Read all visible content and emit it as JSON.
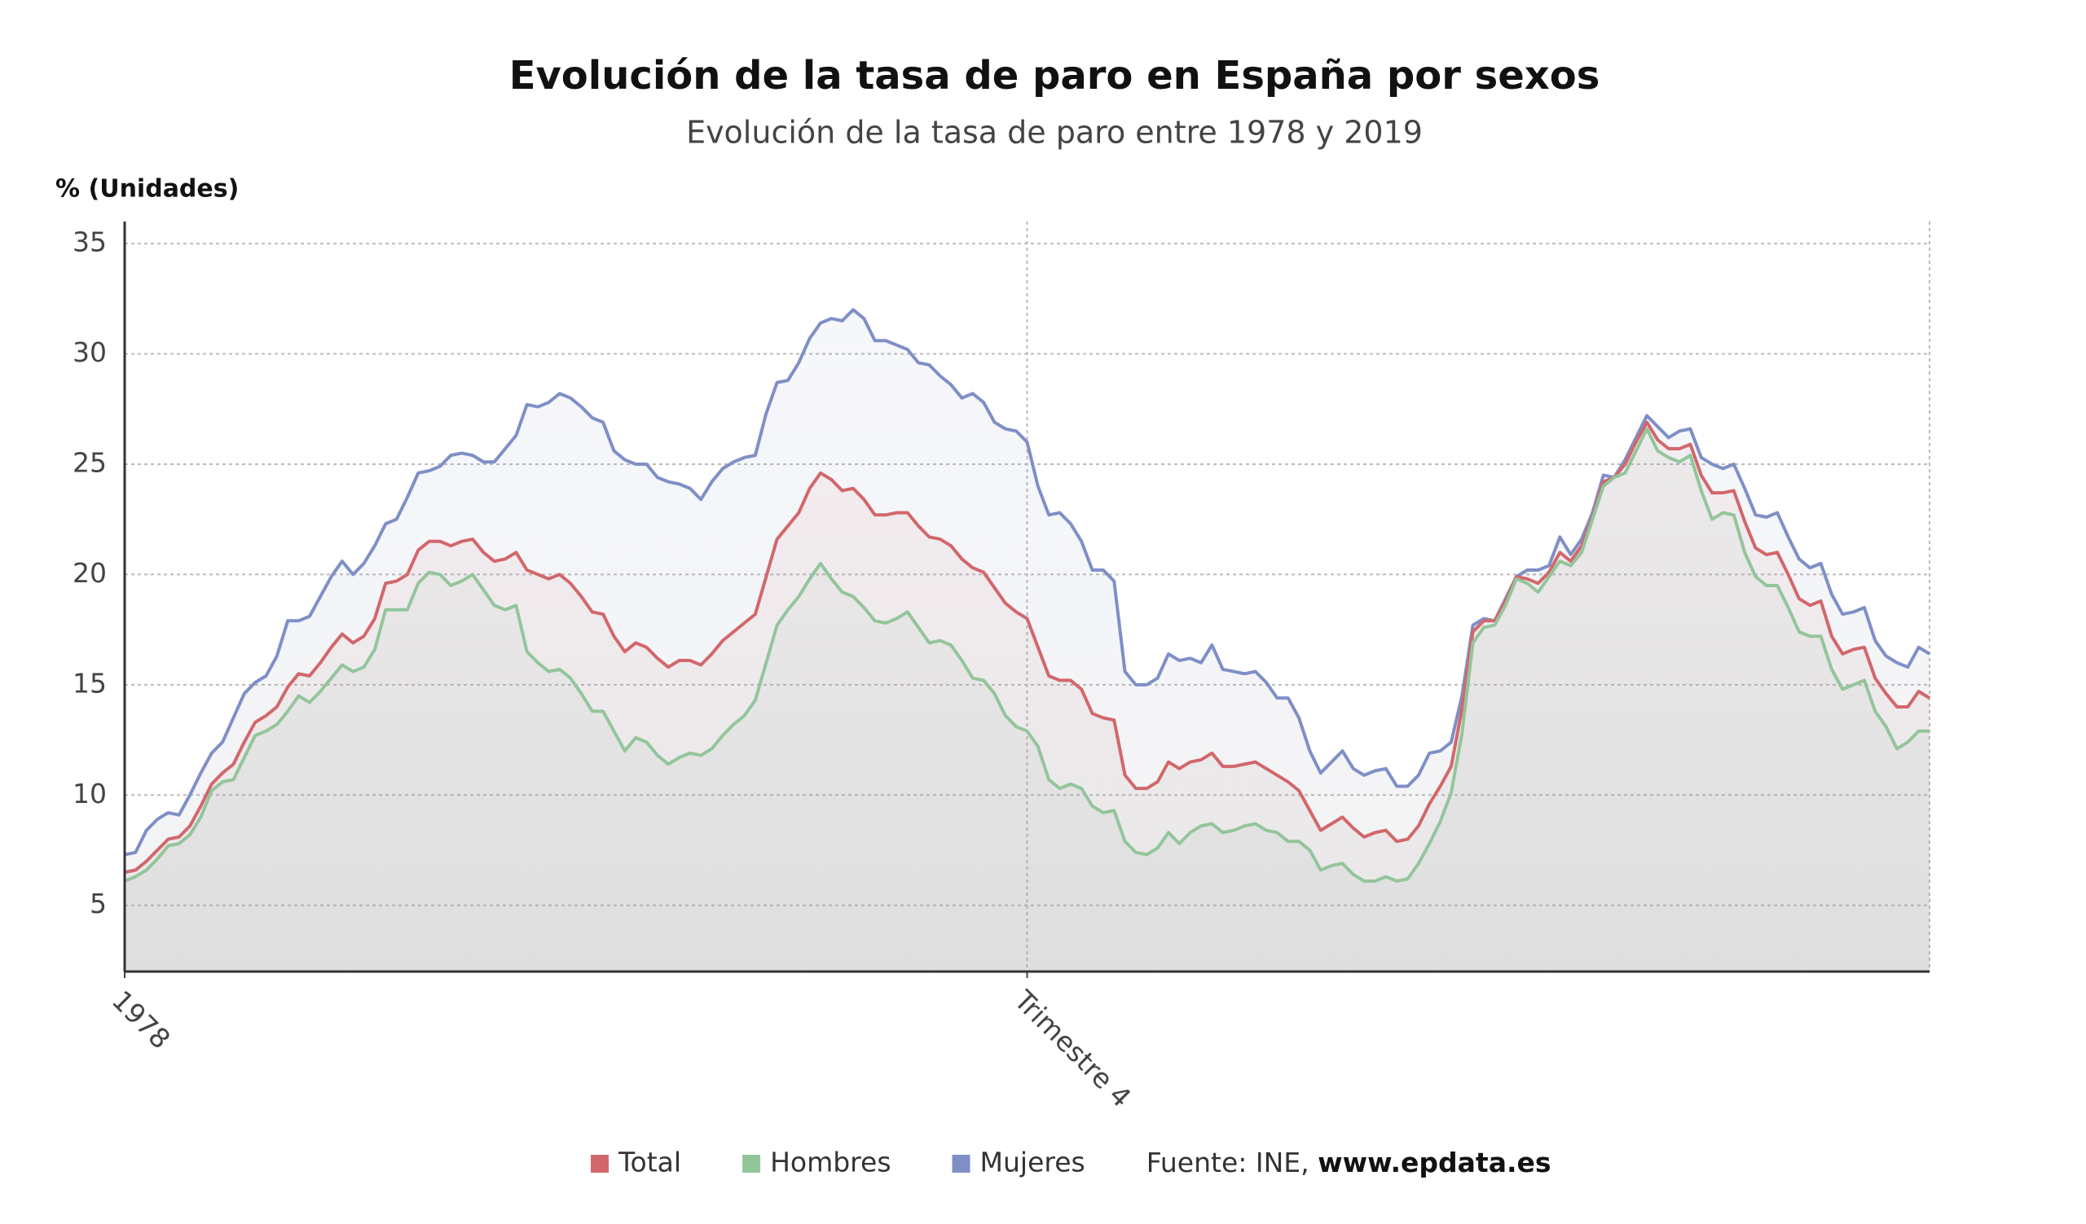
{
  "chart_data": {
    "type": "line",
    "title": "Evolución de la tasa de paro en España por sexos",
    "subtitle": "Evolución de la tasa de paro entre 1978 y 2019",
    "y_label": "% (Unidades)",
    "source_prefix": "Fuente: INE,",
    "source_link": "www.epdata.es",
    "grid": true,
    "ylim": [
      2,
      36
    ],
    "yticks": [
      5,
      10,
      15,
      20,
      25,
      30,
      35
    ],
    "categories": [
      "1978",
      null,
      null,
      null,
      null,
      null,
      null,
      null,
      null,
      null,
      null,
      null,
      null,
      null,
      null,
      null,
      null,
      null,
      null,
      null,
      null,
      null,
      null,
      null,
      null,
      null,
      null,
      null,
      null,
      null,
      null,
      null,
      null,
      null,
      null,
      null,
      null,
      null,
      null,
      null,
      null,
      null,
      null,
      null,
      null,
      null,
      null,
      null,
      null,
      null,
      null,
      null,
      null,
      null,
      null,
      null,
      null,
      null,
      null,
      null,
      null,
      null,
      null,
      null,
      null,
      null,
      null,
      null,
      null,
      null,
      null,
      null,
      null,
      null,
      null,
      null,
      null,
      null,
      null,
      null,
      null,
      null,
      null,
      "Trimestre 4",
      null,
      null,
      null,
      null,
      null,
      null,
      null,
      null,
      null,
      null,
      null,
      null,
      null,
      null,
      null,
      null,
      null,
      null,
      null,
      null,
      null,
      null,
      null,
      null,
      null,
      null,
      null,
      null,
      null,
      null,
      null,
      null,
      null,
      null,
      null,
      null,
      null,
      null,
      null,
      null,
      null,
      null,
      null,
      null,
      null,
      null,
      null,
      null,
      null,
      null,
      null,
      null,
      null,
      null,
      null,
      null,
      null,
      null,
      null,
      null,
      null,
      null,
      null,
      null,
      null,
      null,
      null,
      null,
      null,
      null,
      null,
      null,
      null,
      null,
      null,
      null,
      null,
      null,
      null,
      null,
      null,
      null,
      null
    ],
    "series": [
      {
        "name": "Total",
        "color": "#d2676b",
        "values": [
          6.5,
          6.6,
          7.0,
          7.5,
          8.0,
          8.1,
          8.6,
          9.5,
          10.5,
          11.0,
          11.4,
          12.4,
          13.3,
          13.6,
          14.0,
          14.9,
          15.5,
          15.4,
          16.0,
          16.7,
          17.3,
          16.9,
          17.2,
          18.0,
          19.6,
          19.7,
          20.0,
          21.1,
          21.5,
          21.5,
          21.3,
          21.5,
          21.6,
          21.0,
          20.6,
          20.7,
          21.0,
          20.2,
          20.0,
          19.8,
          20.0,
          19.6,
          19.0,
          18.3,
          18.2,
          17.2,
          16.5,
          16.9,
          16.7,
          16.2,
          15.8,
          16.1,
          16.1,
          15.9,
          16.4,
          17.0,
          17.4,
          17.8,
          18.2,
          19.9,
          21.6,
          22.2,
          22.8,
          23.9,
          24.6,
          24.3,
          23.8,
          23.9,
          23.4,
          22.7,
          22.7,
          22.8,
          22.8,
          22.2,
          21.7,
          21.6,
          21.3,
          20.7,
          20.3,
          20.1,
          19.4,
          18.7,
          18.3,
          18.0,
          16.7,
          15.4,
          15.2,
          15.2,
          14.8,
          13.7,
          13.5,
          13.4,
          10.9,
          10.3,
          10.3,
          10.6,
          11.5,
          11.2,
          11.5,
          11.6,
          11.9,
          11.3,
          11.3,
          11.4,
          11.5,
          11.2,
          10.9,
          10.6,
          10.2,
          9.3,
          8.4,
          8.7,
          9.0,
          8.5,
          8.1,
          8.3,
          8.4,
          7.9,
          8.0,
          8.6,
          9.6,
          10.4,
          11.3,
          13.9,
          17.4,
          17.9,
          17.9,
          18.8,
          19.9,
          19.8,
          19.6,
          20.1,
          21.0,
          20.6,
          21.3,
          22.6,
          24.2,
          24.4,
          25.0,
          26.0,
          26.9,
          26.1,
          25.7,
          25.7,
          25.9,
          24.5,
          23.7,
          23.7,
          23.8,
          22.4,
          21.2,
          20.9,
          21.0,
          20.0,
          18.9,
          18.6,
          18.8,
          17.2,
          16.4,
          16.6,
          16.7,
          15.3,
          14.6,
          14.0,
          14.0,
          14.7,
          14.4
        ]
      },
      {
        "name": "Hombres",
        "color": "#93c59b",
        "values": [
          6.1,
          6.3,
          6.6,
          7.1,
          7.7,
          7.8,
          8.2,
          9.0,
          10.2,
          10.6,
          10.7,
          11.7,
          12.7,
          12.9,
          13.2,
          13.8,
          14.5,
          14.2,
          14.7,
          15.3,
          15.9,
          15.6,
          15.8,
          16.6,
          18.4,
          18.4,
          18.4,
          19.6,
          20.1,
          20.0,
          19.5,
          19.7,
          20.0,
          19.3,
          18.6,
          18.4,
          18.6,
          16.5,
          16.0,
          15.6,
          15.7,
          15.3,
          14.6,
          13.8,
          13.8,
          12.9,
          12.0,
          12.6,
          12.4,
          11.8,
          11.4,
          11.7,
          11.9,
          11.8,
          12.1,
          12.7,
          13.2,
          13.6,
          14.3,
          16.0,
          17.7,
          18.4,
          19.0,
          19.8,
          20.5,
          19.8,
          19.2,
          19.0,
          18.5,
          17.9,
          17.8,
          18.0,
          18.3,
          17.6,
          16.9,
          17.0,
          16.8,
          16.1,
          15.3,
          15.2,
          14.6,
          13.6,
          13.1,
          12.9,
          12.2,
          10.7,
          10.3,
          10.5,
          10.3,
          9.5,
          9.2,
          9.3,
          7.9,
          7.4,
          7.3,
          7.6,
          8.3,
          7.8,
          8.3,
          8.6,
          8.7,
          8.3,
          8.4,
          8.6,
          8.7,
          8.4,
          8.3,
          7.9,
          7.9,
          7.5,
          6.6,
          6.8,
          6.9,
          6.4,
          6.1,
          6.1,
          6.3,
          6.1,
          6.2,
          6.9,
          7.8,
          8.8,
          10.1,
          12.8,
          16.9,
          17.6,
          17.7,
          18.6,
          19.8,
          19.6,
          19.2,
          19.9,
          20.6,
          20.4,
          21.0,
          22.5,
          24.0,
          24.4,
          24.6,
          25.6,
          26.6,
          25.6,
          25.3,
          25.1,
          25.4,
          23.8,
          22.5,
          22.8,
          22.7,
          21.0,
          19.9,
          19.5,
          19.5,
          18.5,
          17.4,
          17.2,
          17.2,
          15.7,
          14.8,
          15.0,
          15.2,
          13.8,
          13.1,
          12.1,
          12.4,
          12.9,
          12.9
        ]
      },
      {
        "name": "Mujeres",
        "color": "#7f8fc6",
        "values": [
          7.3,
          7.4,
          8.4,
          8.9,
          9.2,
          9.1,
          10.0,
          11.0,
          11.9,
          12.4,
          13.5,
          14.6,
          15.1,
          15.4,
          16.3,
          17.9,
          17.9,
          18.1,
          19.0,
          19.9,
          20.6,
          20.0,
          20.5,
          21.3,
          22.3,
          22.5,
          23.5,
          24.6,
          24.7,
          24.9,
          25.4,
          25.5,
          25.4,
          25.1,
          25.1,
          25.7,
          26.3,
          27.7,
          27.6,
          27.8,
          28.2,
          28.0,
          27.6,
          27.1,
          26.9,
          25.6,
          25.2,
          25.0,
          25.0,
          24.4,
          24.2,
          24.1,
          23.9,
          23.4,
          24.2,
          24.8,
          25.1,
          25.3,
          25.4,
          27.3,
          28.7,
          28.8,
          29.6,
          30.7,
          31.4,
          31.6,
          31.5,
          32.0,
          31.6,
          30.6,
          30.6,
          30.4,
          30.2,
          29.6,
          29.5,
          29.0,
          28.6,
          28.0,
          28.2,
          27.8,
          26.9,
          26.6,
          26.5,
          26.0,
          24.0,
          22.7,
          22.8,
          22.3,
          21.5,
          20.2,
          20.2,
          19.7,
          15.6,
          15.0,
          15.0,
          15.3,
          16.4,
          16.1,
          16.2,
          16.0,
          16.8,
          15.7,
          15.6,
          15.5,
          15.6,
          15.1,
          14.4,
          14.4,
          13.5,
          12.0,
          11.0,
          11.5,
          12.0,
          11.2,
          10.9,
          11.1,
          11.2,
          10.4,
          10.4,
          10.9,
          11.9,
          12.0,
          12.4,
          14.5,
          17.7,
          18.0,
          17.9,
          18.9,
          19.9,
          20.2,
          20.2,
          20.4,
          21.7,
          20.9,
          21.6,
          22.8,
          24.5,
          24.4,
          25.2,
          26.2,
          27.2,
          26.7,
          26.2,
          26.5,
          26.6,
          25.3,
          25.0,
          24.8,
          25.0,
          23.9,
          22.7,
          22.6,
          22.8,
          21.7,
          20.7,
          20.3,
          20.5,
          19.1,
          18.2,
          18.3,
          18.5,
          17.0,
          16.3,
          16.0,
          15.8,
          16.7,
          16.4
        ]
      }
    ]
  }
}
